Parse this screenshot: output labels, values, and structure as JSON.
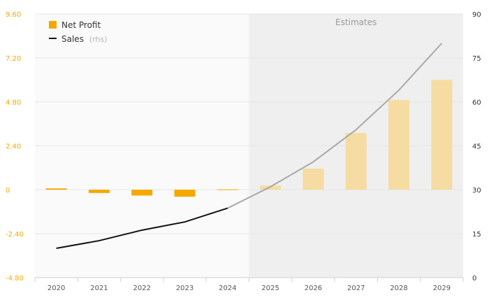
{
  "chart_data": {
    "type": "bar+line",
    "categories": [
      "2020",
      "2021",
      "2022",
      "2023",
      "2024",
      "2025",
      "2026",
      "2027",
      "2028",
      "2029"
    ],
    "series": [
      {
        "name": "Net Profit",
        "axis": "left",
        "kind": "bar",
        "values": [
          0.07,
          -0.18,
          -0.32,
          -0.38,
          0.02,
          0.22,
          1.15,
          3.1,
          4.9,
          6.0
        ]
      },
      {
        "name": "Sales",
        "axis": "right",
        "kind": "line",
        "values": [
          10,
          12.6,
          16.2,
          19,
          23.7,
          31,
          39.5,
          50.5,
          64,
          80
        ]
      }
    ],
    "legend": {
      "bar_label": "Net Profit",
      "line_label": "Sales",
      "line_suffix": "(rhs)",
      "placement": "top-left"
    },
    "left_axis": {
      "min": -4.8,
      "max": 9.6,
      "ticks": [
        "9.60",
        "7.20",
        "4.80",
        "2.40",
        "0",
        "-2.40",
        "-4.80"
      ]
    },
    "right_axis": {
      "min": 0,
      "max": 90,
      "ticks": [
        "90",
        "75",
        "60",
        "45",
        "30",
        "15",
        "0"
      ]
    },
    "estimates": {
      "label": "Estimates",
      "start_category": "2025"
    },
    "colors": {
      "bar_actual": "#f5a800",
      "bar_estimate": "#f6dca2",
      "line_actual": "#111111",
      "line_estimate": "#a8a8a8",
      "estimate_band": "#efefef",
      "plot_bg": "#fafafa",
      "grid": "#e6e6e6"
    },
    "grid": true
  }
}
